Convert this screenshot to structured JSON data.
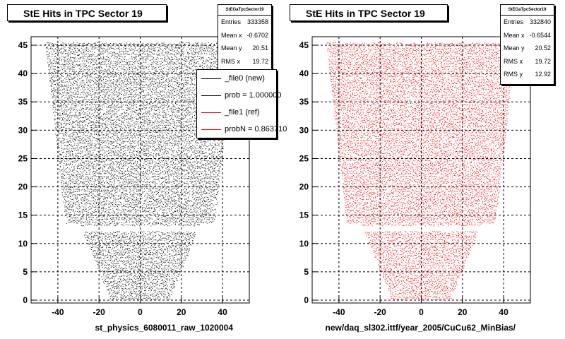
{
  "colors": {
    "data_file0": "#000000",
    "data_file1": "#ff0000",
    "legend_file0": "#000000",
    "legend_file1": "#ff0000"
  },
  "left_panel": {
    "title": "StE Hits in TPC Sector 19",
    "x_axis_title": "st_physics_6080011_raw_1020004",
    "stats": {
      "name": "StEGaTpcSector19",
      "rows": [
        {
          "label": "Entries",
          "value": "333358"
        },
        {
          "label": "Mean x",
          "value": "-0.6702"
        },
        {
          "label": "Mean y",
          "value": "20.51"
        },
        {
          "label": "RMS x",
          "value": "19.72"
        }
      ]
    },
    "legend": {
      "entries": [
        {
          "label": "_file0 (new)",
          "color": "#000000"
        },
        {
          "label": "prob = 1.000000",
          "color": "#000000"
        },
        {
          "label": "_file1 (ref)",
          "color": "#ff0000"
        },
        {
          "label": "probN = 0.863710",
          "color": "#ff0000"
        }
      ]
    }
  },
  "right_panel": {
    "title": "StE Hits in TPC Sector 19",
    "x_axis_title": "new/daq_sl302.ittf/year_2005/CuCu62_MinBias/",
    "stats": {
      "name": "StEGaTpcSector19",
      "rows": [
        {
          "label": "Entries",
          "value": "332840"
        },
        {
          "label": "Mean x",
          "value": "-0.6544"
        },
        {
          "label": "Mean y",
          "value": "20.52"
        },
        {
          "label": "RMS x",
          "value": "19.72"
        },
        {
          "label": "RMS y",
          "value": "12.92"
        }
      ]
    }
  },
  "chart_data": [
    {
      "type": "scatter",
      "title": "StE Hits in TPC Sector 19",
      "xlabel": "st_physics_6080011_raw_1020004",
      "ylabel": "",
      "xlim": [
        -53,
        53
      ],
      "ylim": [
        -0.5,
        46.5
      ],
      "x_ticks": [
        -40,
        -20,
        0,
        20,
        40
      ],
      "y_ticks": [
        0,
        5,
        10,
        15,
        20,
        25,
        30,
        35,
        40,
        45
      ],
      "grid": true,
      "series": [
        {
          "name": "_file0 (new)",
          "color": "#000000"
        }
      ],
      "region": {
        "outer_rows": [
          {
            "y_max": 45.5,
            "half_width": 46
          },
          {
            "y_max": 13.5,
            "half_width": 36
          },
          {
            "y_max": 12,
            "half_width": 27.5
          },
          {
            "y_max": 0.5,
            "half_width": 14
          }
        ],
        "inner_rows": [
          {
            "y_max": 45.5,
            "half_width": 34
          },
          {
            "y_max": 13.5,
            "half_width": 24.5
          },
          {
            "y_max": 0.5,
            "half_width": 14.5
          }
        ],
        "outer_from_row": 13,
        "empty_band_y": 12.6
      }
    },
    {
      "type": "scatter",
      "title": "StE Hits in TPC Sector 19",
      "xlabel": "new/daq_sl302.ittf/year_2005/CuCu62_MinBias/",
      "ylabel": "",
      "xlim": [
        -53,
        53
      ],
      "ylim": [
        -0.5,
        46.5
      ],
      "x_ticks": [
        -40,
        -20,
        0,
        20,
        40
      ],
      "y_ticks": [
        0,
        5,
        10,
        15,
        20,
        25,
        30,
        35,
        40,
        45
      ],
      "grid": true,
      "series": [
        {
          "name": "_file1 (ref)",
          "color": "#ff0000"
        }
      ]
    }
  ]
}
